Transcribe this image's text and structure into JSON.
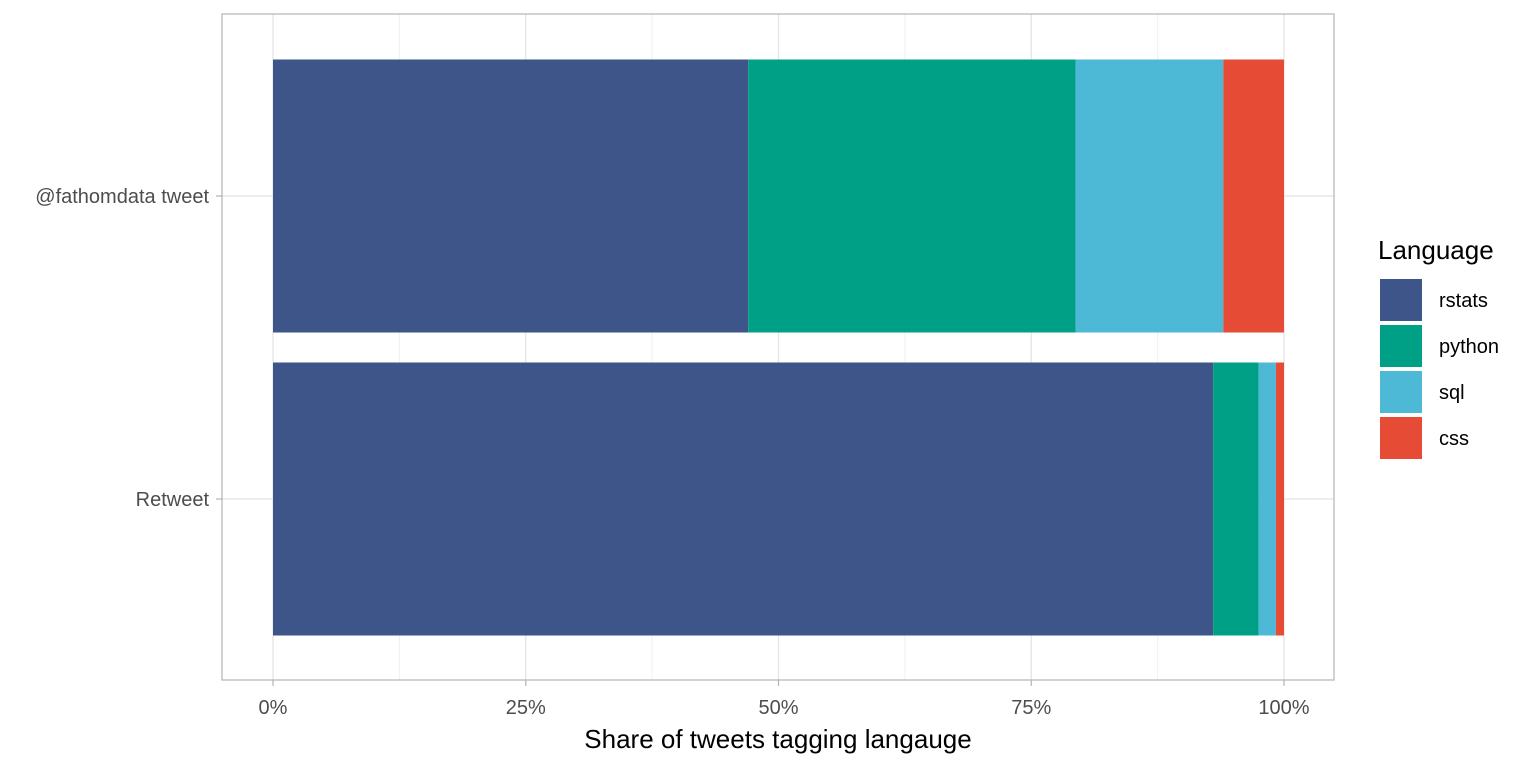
{
  "chart_data": {
    "type": "bar",
    "orientation": "horizontal",
    "stacked": true,
    "categories": [
      "@fathomdata tweet",
      "Retweet"
    ],
    "series": [
      {
        "name": "rstats",
        "values": [
          0.47,
          0.93
        ],
        "color": "#3d5588"
      },
      {
        "name": "python",
        "values": [
          0.324,
          0.045
        ],
        "color": "#00a087"
      },
      {
        "name": "sql",
        "values": [
          0.146,
          0.017
        ],
        "color": "#4eb9d6"
      },
      {
        "name": "css",
        "values": [
          0.06,
          0.008
        ],
        "color": "#e64b35"
      }
    ],
    "xlabel": "Share of tweets tagging langauge",
    "ylabel": "",
    "xlim": [
      0,
      1
    ],
    "x_ticks": [
      {
        "value": 0,
        "label": "0%"
      },
      {
        "value": 0.25,
        "label": "25%"
      },
      {
        "value": 0.5,
        "label": "50%"
      },
      {
        "value": 0.75,
        "label": "75%"
      },
      {
        "value": 1,
        "label": "100%"
      }
    ],
    "legend": {
      "title": "Language",
      "position": "right"
    },
    "grid": true
  }
}
